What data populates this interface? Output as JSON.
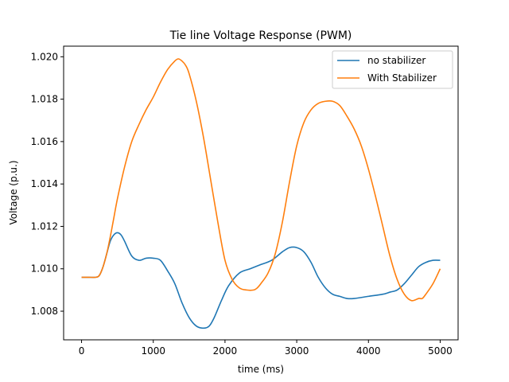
{
  "chart_data": {
    "type": "line",
    "title": "Tie line Voltage Response (PWM)",
    "xlabel": "time (ms)",
    "ylabel": "Voltage (p.u.)",
    "xlim": [
      -250,
      5250
    ],
    "ylim": [
      1.00665,
      1.0205
    ],
    "xticks": [
      0,
      1000,
      2000,
      3000,
      4000,
      5000
    ],
    "yticks": [
      1.008,
      1.01,
      1.012,
      1.014,
      1.016,
      1.018,
      1.02
    ],
    "ytick_labels": [
      "1.008",
      "1.010",
      "1.012",
      "1.014",
      "1.016",
      "1.018",
      "1.020"
    ],
    "grid": false,
    "legend_position": "top-right",
    "series": [
      {
        "name": "no stabilizer",
        "color": "#1f77b4",
        "x": [
          0,
          100,
          200,
          250,
          300,
          350,
          400,
          450,
          500,
          550,
          600,
          700,
          800,
          900,
          1000,
          1100,
          1200,
          1300,
          1400,
          1500,
          1600,
          1700,
          1780,
          1850,
          1950,
          2050,
          2200,
          2350,
          2500,
          2650,
          2800,
          2900,
          3000,
          3100,
          3200,
          3300,
          3400,
          3500,
          3600,
          3700,
          3800,
          4000,
          4200,
          4300,
          4400,
          4500,
          4600,
          4700,
          4800,
          4900,
          5000
        ],
        "y": [
          1.0096,
          1.0096,
          1.0096,
          1.0097,
          1.0101,
          1.0107,
          1.0113,
          1.0116,
          1.0117,
          1.0116,
          1.0113,
          1.0106,
          1.0104,
          1.0105,
          1.0105,
          1.0104,
          1.0099,
          1.0093,
          1.0084,
          1.0077,
          1.0073,
          1.0072,
          1.0073,
          1.0077,
          1.0085,
          1.0092,
          1.0098,
          1.01,
          1.0102,
          1.0104,
          1.0108,
          1.011,
          1.011,
          1.0108,
          1.0103,
          1.0096,
          1.0091,
          1.0088,
          1.0087,
          1.0086,
          1.0086,
          1.0087,
          1.0088,
          1.0089,
          1.009,
          1.0093,
          1.0097,
          1.0101,
          1.0103,
          1.0104,
          1.0104
        ]
      },
      {
        "name": "With Stabilizer",
        "color": "#ff7f0e",
        "x": [
          0,
          100,
          200,
          250,
          300,
          350,
          400,
          450,
          500,
          600,
          700,
          800,
          900,
          1000,
          1100,
          1200,
          1300,
          1350,
          1400,
          1450,
          1500,
          1600,
          1700,
          1800,
          1900,
          2000,
          2100,
          2200,
          2300,
          2400,
          2450,
          2500,
          2600,
          2700,
          2800,
          2900,
          3000,
          3100,
          3200,
          3300,
          3400,
          3500,
          3600,
          3700,
          3800,
          3900,
          4000,
          4100,
          4200,
          4300,
          4400,
          4500,
          4600,
          4700,
          4750,
          4800,
          4900,
          5000
        ],
        "y": [
          1.0096,
          1.0096,
          1.0096,
          1.0097,
          1.0101,
          1.0107,
          1.0115,
          1.0124,
          1.0133,
          1.0148,
          1.016,
          1.0168,
          1.0175,
          1.0181,
          1.0188,
          1.0194,
          1.0198,
          1.0199,
          1.0198,
          1.0196,
          1.0192,
          1.0179,
          1.0162,
          1.0142,
          1.0122,
          1.0104,
          1.0095,
          1.0091,
          1.009,
          1.009,
          1.0091,
          1.0093,
          1.0098,
          1.0107,
          1.0122,
          1.0141,
          1.0158,
          1.0169,
          1.0175,
          1.0178,
          1.0179,
          1.0179,
          1.0177,
          1.0172,
          1.0166,
          1.0158,
          1.0147,
          1.0134,
          1.012,
          1.0106,
          1.0095,
          1.0088,
          1.0085,
          1.0086,
          1.0086,
          1.0088,
          1.0093,
          1.01
        ]
      }
    ]
  }
}
